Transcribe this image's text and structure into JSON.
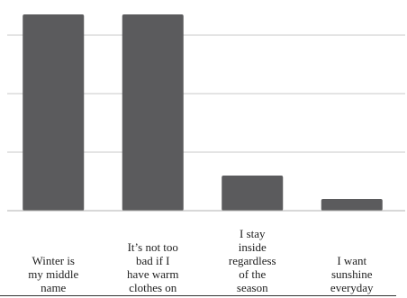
{
  "colors": {
    "bar": "#5b5b5d",
    "gridline": "#c8c8c8",
    "axis": "#b0b0b0",
    "text": "#222222"
  },
  "chart_data": {
    "type": "bar",
    "title": "",
    "xlabel": "",
    "ylabel": "",
    "categories": [
      "Winter is\nmy middle\nname",
      "It’s not too\nbad if I\nhave warm\nclothes on",
      "I stay\ninside\nregardless\nof the\nseason",
      "I want\nsunshine\neveryday"
    ],
    "values": [
      36,
      36,
      6,
      2
    ],
    "ylim": [
      0,
      40
    ],
    "grid": true,
    "y_tick_labels_shown": false,
    "legend": "none"
  }
}
